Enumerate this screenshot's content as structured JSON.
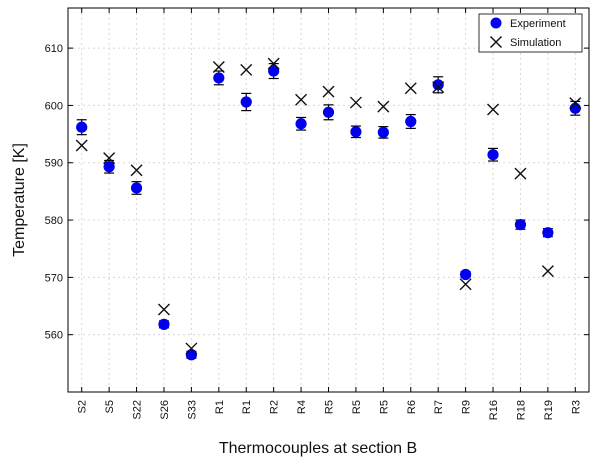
{
  "chart_data": {
    "type": "scatter",
    "xlabel": "Thermocouples at section B",
    "ylabel": "Temperature [K]",
    "ylim": [
      550,
      617
    ],
    "yticks": [
      560,
      570,
      580,
      590,
      600,
      610
    ],
    "categories": [
      "S2",
      "S5",
      "S22",
      "S26",
      "S33",
      "R1",
      "R1",
      "R2",
      "R4",
      "R5",
      "R5",
      "R5",
      "R6",
      "R7",
      "R9",
      "R16",
      "R18",
      "R19",
      "R3"
    ],
    "legend_position": "top-right",
    "series": [
      {
        "name": "Experiment",
        "marker": "filled-circle",
        "color": "#0000ee",
        "values": [
          596.2,
          589.3,
          585.6,
          561.8,
          556.5,
          604.8,
          600.6,
          606.0,
          596.8,
          598.8,
          595.4,
          595.3,
          597.2,
          603.6,
          570.5,
          591.4,
          579.2,
          577.8,
          599.5
        ],
        "error": [
          1.3,
          1.1,
          1.1,
          0.6,
          0.6,
          1.2,
          1.5,
          1.3,
          1.1,
          1.3,
          1.0,
          1.0,
          1.2,
          1.4,
          0.5,
          1.1,
          0.8,
          0.7,
          1.2
        ]
      },
      {
        "name": "Simulation",
        "marker": "x",
        "color": "#111111",
        "values": [
          593.0,
          590.8,
          588.7,
          564.4,
          557.6,
          606.7,
          606.2,
          607.3,
          601.0,
          602.4,
          600.5,
          599.8,
          603.0,
          603.2,
          568.8,
          599.3,
          588.1,
          571.1,
          600.4
        ]
      }
    ]
  }
}
